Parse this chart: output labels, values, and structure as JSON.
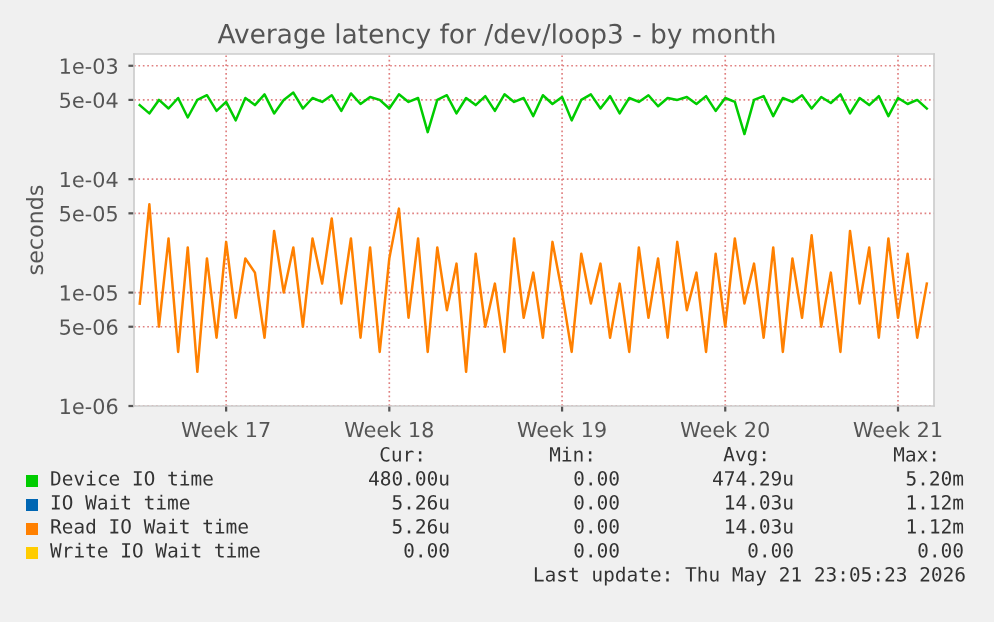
{
  "chart_data": {
    "type": "line",
    "title": "Average latency for /dev/loop3 - by month",
    "ylabel": "seconds",
    "categories": [
      null,
      null,
      null,
      null,
      null,
      null,
      null,
      null,
      null,
      "Week 17",
      null,
      null,
      null,
      null,
      null,
      null,
      null,
      null,
      null,
      null,
      null,
      null,
      null,
      null,
      null,
      null,
      "Week 18",
      null,
      null,
      null,
      null,
      null,
      null,
      null,
      null,
      null,
      null,
      null,
      null,
      null,
      null,
      null,
      null,
      null,
      "Week 19",
      null,
      null,
      null,
      null,
      null,
      null,
      null,
      null,
      null,
      null,
      null,
      null,
      null,
      null,
      null,
      null,
      "Week 20",
      null,
      null,
      null,
      null,
      null,
      null,
      null,
      null,
      null,
      null,
      null,
      null,
      null,
      null,
      null,
      null,
      null,
      "Week 21",
      null,
      null,
      null
    ],
    "series": [
      {
        "name": "Device IO time",
        "color": "#00cc00",
        "values": [
          0.00045,
          0.00038,
          0.0005,
          0.00042,
          0.00052,
          0.00035,
          0.0005,
          0.00055,
          0.0004,
          0.00048,
          0.00033,
          0.00052,
          0.00045,
          0.00056,
          0.00038,
          0.0005,
          0.00058,
          0.00042,
          0.00052,
          0.00048,
          0.00055,
          0.0004,
          0.00057,
          0.00046,
          0.00053,
          0.0005,
          0.00042,
          0.00056,
          0.00048,
          0.00052,
          0.00026,
          0.0005,
          0.00055,
          0.00038,
          0.00052,
          0.00045,
          0.00054,
          0.0004,
          0.00056,
          0.00048,
          0.00052,
          0.00036,
          0.00055,
          0.00046,
          0.00053,
          0.00033,
          0.0005,
          0.00056,
          0.00042,
          0.00054,
          0.00038,
          0.00052,
          0.00048,
          0.00055,
          0.00044,
          0.00052,
          0.0005,
          0.00053,
          0.00046,
          0.00054,
          0.0004,
          0.00052,
          0.00048,
          0.00025,
          0.0005,
          0.00054,
          0.00036,
          0.00052,
          0.00048,
          0.00055,
          0.00042,
          0.00053,
          0.00047,
          0.00056,
          0.00038,
          0.00052,
          0.00045,
          0.00054,
          0.00036,
          0.00052,
          0.00046,
          0.0005,
          0.00042
        ]
      },
      {
        "name": "IO Wait time",
        "color": "#0066b3",
        "values": [
          null,
          null,
          null,
          null,
          null,
          null,
          null,
          null,
          null,
          null,
          null,
          null,
          null,
          null,
          null,
          null,
          null,
          null,
          null,
          null,
          null,
          null,
          null,
          null,
          null,
          null,
          null,
          null,
          null,
          null,
          null,
          null,
          null,
          null,
          null,
          null,
          null,
          null,
          null,
          null,
          null,
          null,
          null,
          null,
          null,
          null,
          null,
          null,
          null,
          null,
          null,
          null,
          null,
          null,
          null,
          null,
          null,
          null,
          null,
          null,
          null,
          null,
          null,
          null,
          null,
          null,
          null,
          null,
          null,
          null,
          null,
          null,
          null,
          null,
          null,
          null,
          null,
          null,
          null,
          null,
          null,
          null,
          null
        ]
      },
      {
        "name": "Read IO Wait time",
        "color": "#ff8000",
        "values": [
          8e-06,
          6e-05,
          5e-06,
          3e-05,
          3e-06,
          2.5e-05,
          2e-06,
          2e-05,
          4e-06,
          2.8e-05,
          6e-06,
          2e-05,
          1.5e-05,
          4e-06,
          3.5e-05,
          1e-05,
          2.5e-05,
          5e-06,
          3e-05,
          1.2e-05,
          4.5e-05,
          8e-06,
          3e-05,
          4e-06,
          2.5e-05,
          3e-06,
          2e-05,
          5.5e-05,
          6e-06,
          3e-05,
          3e-06,
          2.5e-05,
          7e-06,
          1.8e-05,
          2e-06,
          2.2e-05,
          5e-06,
          1.2e-05,
          3e-06,
          3e-05,
          6e-06,
          1.5e-05,
          4e-06,
          2.8e-05,
          1e-05,
          3e-06,
          2.2e-05,
          8e-06,
          1.8e-05,
          4e-06,
          1.2e-05,
          3e-06,
          2.5e-05,
          6e-06,
          2e-05,
          4e-06,
          2.8e-05,
          7e-06,
          1.5e-05,
          3e-06,
          2.2e-05,
          5e-06,
          3e-05,
          8e-06,
          1.8e-05,
          4e-06,
          2.5e-05,
          3e-06,
          2e-05,
          6e-06,
          3.2e-05,
          5e-06,
          1.5e-05,
          3e-06,
          3.5e-05,
          8e-06,
          2.5e-05,
          4e-06,
          3e-05,
          6e-06,
          2.2e-05,
          4e-06,
          1.2e-05
        ]
      },
      {
        "name": "Write IO Wait time",
        "color": "#ffcc00",
        "values": [
          null,
          null,
          null,
          null,
          null,
          null,
          null,
          null,
          null,
          null,
          null,
          null,
          null,
          null,
          null,
          null,
          null,
          null,
          null,
          null,
          null,
          null,
          null,
          null,
          null,
          null,
          null,
          null,
          null,
          null,
          null,
          null,
          null,
          null,
          null,
          null,
          null,
          null,
          null,
          null,
          null,
          null,
          null,
          null,
          null,
          null,
          null,
          null,
          null,
          null,
          null,
          null,
          null,
          null,
          null,
          null,
          null,
          null,
          null,
          null,
          null,
          null,
          null,
          null,
          null,
          null,
          null,
          null,
          null,
          null,
          null,
          null,
          null,
          null,
          null,
          null,
          null,
          null,
          null,
          null,
          null,
          null,
          null
        ]
      }
    ],
    "log": true,
    "ylim": [
      1e-06,
      0.00127
    ],
    "yticks": [
      {
        "value": 0.001,
        "label": "1e-03"
      },
      {
        "value": 0.0005,
        "label": "5e-04"
      },
      {
        "value": 0.0001,
        "label": "1e-04"
      },
      {
        "value": 5e-05,
        "label": "5e-05"
      },
      {
        "value": 1e-05,
        "label": "1e-05"
      },
      {
        "value": 5e-06,
        "label": "5e-06"
      },
      {
        "value": 1e-06,
        "label": "1e-06"
      }
    ],
    "grid": true,
    "legend": "bottom",
    "annotations": [
      "Cur:",
      "Min:",
      "Avg:",
      "Max:",
      "480.00u",
      "0.00",
      "474.29u",
      "5.20m",
      "5.26u",
      "0.00",
      "14.03u",
      "1.12m",
      "5.26u",
      "0.00",
      "14.03u",
      "1.12m",
      "0.00",
      "0.00",
      "0.00",
      "0.00",
      "Last update: Thu May 21 23:05:23 2026"
    ]
  }
}
